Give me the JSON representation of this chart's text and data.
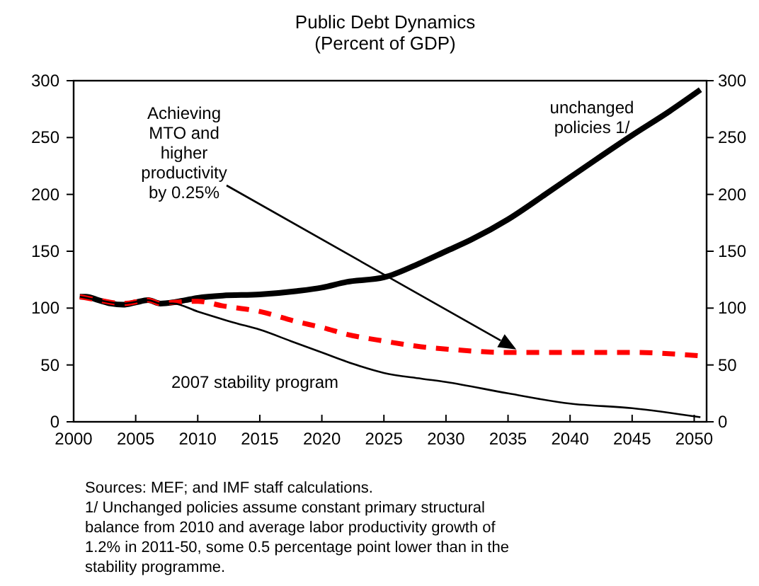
{
  "chart_data": {
    "type": "line",
    "title": "Public Debt Dynamics",
    "subtitle": "(Percent of GDP)",
    "xlim": [
      2000,
      2051
    ],
    "xticks": [
      2000,
      2005,
      2010,
      2015,
      2020,
      2025,
      2030,
      2035,
      2040,
      2045,
      2050
    ],
    "ylim": [
      0,
      300
    ],
    "yticks": [
      0,
      50,
      100,
      150,
      200,
      250,
      300
    ],
    "y2lim": [
      0,
      300
    ],
    "y2ticks": [
      0,
      50,
      100,
      150,
      200,
      250,
      300
    ],
    "grid": false,
    "series": [
      {
        "name": "unchanged policies 1/",
        "color": "#000000",
        "line_style": "solid",
        "x": [
          2000.5,
          2001,
          2002,
          2003,
          2004,
          2005,
          2006,
          2007,
          2008,
          2009,
          2010,
          2012,
          2015,
          2018,
          2020,
          2022,
          2025,
          2028,
          2030,
          2032,
          2035,
          2038,
          2040,
          2042,
          2045,
          2048,
          2050.5
        ],
        "values": [
          110,
          110,
          107,
          104,
          103,
          105,
          107,
          104,
          105,
          107,
          109,
          111,
          112,
          115,
          118,
          123,
          127,
          140,
          150,
          160,
          178,
          200,
          215,
          230,
          252,
          273,
          292
        ]
      },
      {
        "color": "#ff0000",
        "line_style": "dashed",
        "x": [
          2000.5,
          2002,
          2004,
          2006,
          2007,
          2008,
          2010,
          2012,
          2015,
          2018,
          2020,
          2022,
          2025,
          2028,
          2030,
          2035,
          2040,
          2045,
          2050.5
        ],
        "values": [
          110,
          107,
          104,
          107,
          104,
          105,
          106,
          102,
          97,
          88,
          83,
          77,
          71,
          66,
          64,
          61,
          61,
          61,
          58
        ]
      },
      {
        "name": "2007 stability program",
        "color": "#000000",
        "line_style": "solid",
        "x": [
          2000.5,
          2002,
          2004,
          2006,
          2007,
          2008,
          2010,
          2013,
          2015,
          2017.5,
          2020,
          2022.5,
          2025,
          2028,
          2030,
          2035,
          2040,
          2045,
          2050.5
        ],
        "values": [
          110,
          107,
          104,
          107,
          104,
          104,
          97,
          87,
          81,
          71,
          61,
          51,
          43,
          38,
          35,
          25,
          16,
          12,
          4
        ]
      }
    ],
    "annotations": [
      "Achieving MTO and higher productivity by 0.25%",
      "Sources: MEF; and IMF staff calculations.",
      "1/ Unchanged policies assume constant primary structural balance from 2010 and average labor productivity growth of 1.2% in 2011-50, some 0.5 percentage point lower than in the stability programme."
    ]
  }
}
